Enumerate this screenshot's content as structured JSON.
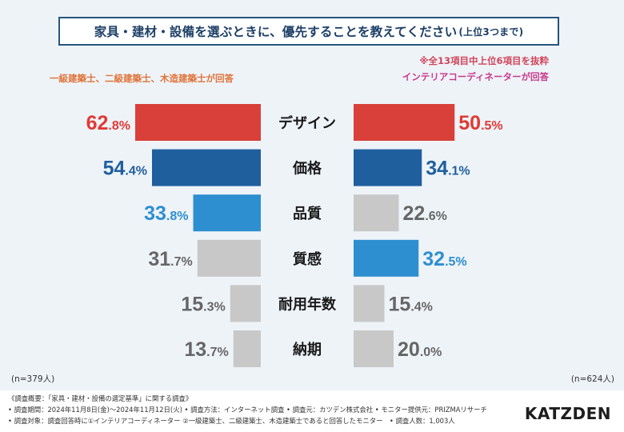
{
  "title": {
    "main": "家具・建材・設備を選ぶときに、優先することを教えてください",
    "suffix": "(上位3つまで)"
  },
  "notes": {
    "left_group": "一級建築士、二級建築士、木造建築士が回答",
    "right_extract": "※全13項目中上位6項目を抜粋",
    "right_group": "インテリアコーディネーターが回答"
  },
  "sample": {
    "left": "(n=379人)",
    "right": "(n=624人)"
  },
  "colors": {
    "red": "#d9403a",
    "darkblue": "#1f5f9e",
    "lightblue": "#2d8fd0",
    "gray": "#c8c8c8",
    "red_text": "#e03a34",
    "darkblue_text": "#1f5f9e",
    "lightblue_text": "#2d8fd0",
    "gray_text": "#666666"
  },
  "chart_data": {
    "type": "bar",
    "orientation": "horizontal-diverging",
    "categories": [
      "デザイン",
      "価格",
      "品質",
      "質感",
      "耐用年数",
      "納期"
    ],
    "series": [
      {
        "name": "一級建築士、二級建築士、木造建築士",
        "side": "left",
        "values": [
          62.8,
          54.4,
          33.8,
          31.7,
          15.3,
          13.7
        ],
        "colors": [
          "red",
          "darkblue",
          "lightblue",
          "gray",
          "gray",
          "gray"
        ],
        "value_labels": [
          "62.8%",
          "54.4%",
          "33.8%",
          "31.7%",
          "15.3%",
          "13.7%"
        ]
      },
      {
        "name": "インテリアコーディネーター",
        "side": "right",
        "values": [
          50.5,
          34.1,
          22.6,
          32.5,
          15.4,
          20.0
        ],
        "colors": [
          "red",
          "darkblue",
          "gray",
          "lightblue",
          "gray",
          "gray"
        ],
        "value_labels": [
          "50.5%",
          "34.1%",
          "22.6%",
          "32.5%",
          "15.4%",
          "20.0%"
        ]
      }
    ],
    "unit": "%"
  },
  "footer": {
    "lines": [
      "《調査概要：「家具・建材・設備の選定基準」に関する調査》",
      "• 調査期間：2024年11月8日(金)〜2024年11月12日(火) • 調査方法：インターネット調査 • 調査元：カツデン株式会社 • モニター提供元：PRIZMAリサーチ",
      "• 調査対象：調査回答時に①インテリアコーディネーター ②一級建築士、二級建築士、木造建築士であると回答したモニター　• 調査人数：1,003人"
    ]
  },
  "logo": "KATZDEN"
}
